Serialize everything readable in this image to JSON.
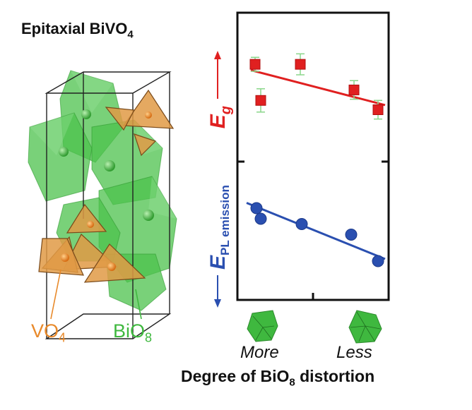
{
  "title": {
    "text": "Epitaxial BiVO",
    "sub": "4"
  },
  "structure_labels": {
    "vo4": {
      "text": "VO",
      "sub": "4",
      "color": "#e8892a"
    },
    "bio8": {
      "text": "BiO",
      "sub": "8",
      "color": "#3fb83f"
    }
  },
  "colors": {
    "eg": "#e02020",
    "pl": "#2a4fb0",
    "errorbar": "#8ad68a",
    "vo4": "#e8892a",
    "bio8": "#3fb83f"
  },
  "chart_data": {
    "type": "scatter",
    "categories": [
      "More",
      "Less"
    ],
    "x_range": [
      0,
      1
    ],
    "xlabel": {
      "pre": "Degree of BiO",
      "sub": "8",
      "post": " distortion"
    },
    "series": [
      {
        "name": "E_g",
        "label_main": "E",
        "label_sub": "g",
        "color": "#e02020",
        "marker": "square",
        "y_range": [
          0,
          1
        ],
        "points": [
          {
            "x": 0.08,
            "y": 0.69,
            "err": 0.06
          },
          {
            "x": 0.12,
            "y": 0.38,
            "err": 0.1
          },
          {
            "x": 0.4,
            "y": 0.69,
            "err": 0.09
          },
          {
            "x": 0.78,
            "y": 0.47,
            "err": 0.08
          },
          {
            "x": 0.95,
            "y": 0.3,
            "err": 0.08
          }
        ],
        "fit": {
          "y_at_xmin": 0.64,
          "y_at_xmax": 0.34,
          "x_min": 0.05,
          "x_max": 1.0
        }
      },
      {
        "name": "E_PL emission",
        "label_main": "E",
        "label_sub": "PL emission",
        "color": "#2a4fb0",
        "marker": "circle",
        "y_range": [
          0,
          1
        ],
        "points": [
          {
            "x": 0.09,
            "y": 0.7
          },
          {
            "x": 0.12,
            "y": 0.6
          },
          {
            "x": 0.41,
            "y": 0.55
          },
          {
            "x": 0.76,
            "y": 0.45
          },
          {
            "x": 0.95,
            "y": 0.2
          }
        ],
        "fit": {
          "y_at_xmin": 0.75,
          "y_at_xmax": 0.22,
          "x_min": 0.02,
          "x_max": 1.0
        }
      }
    ]
  }
}
